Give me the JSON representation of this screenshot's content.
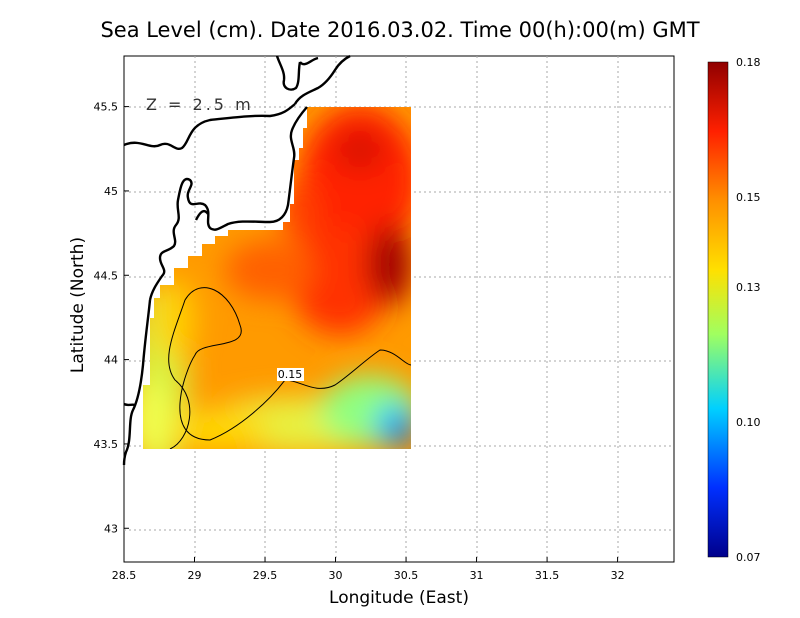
{
  "title": "Sea Level (cm). Date 2016.03.02. Time 00(h):00(m) GMT",
  "depth_label": "Z = 2.5 m",
  "xlabel": "Longitude (East)",
  "ylabel": "Latitude (North)",
  "contour_label": "0.15",
  "colors": {
    "scale": [
      "#00008b",
      "#0030ff",
      "#00d0ff",
      "#a0ff60",
      "#ffe000",
      "#ff9000",
      "#ff2000",
      "#900000"
    ],
    "coast": "#000000",
    "grid": "#aaaaaa"
  },
  "chart_data": {
    "type": "heatmap",
    "xlim": [
      28.5,
      32.4
    ],
    "ylim": [
      42.8,
      45.8
    ],
    "x_ticks": [
      "28.5",
      "29",
      "29.5",
      "30",
      "30.5",
      "31",
      "31.5",
      "32"
    ],
    "y_ticks": [
      "43",
      "43.5",
      "44",
      "44.5",
      "45",
      "45.5"
    ],
    "colorbar": {
      "range": [
        0.07,
        0.18
      ],
      "ticks": [
        "0.07",
        "0.10",
        "0.13",
        "0.15",
        "0.18"
      ]
    },
    "domain_extent": {
      "lon": [
        28.6,
        30.5
      ],
      "lat": [
        43.5,
        45.5
      ]
    },
    "contour_level": 0.15,
    "grid": true
  }
}
